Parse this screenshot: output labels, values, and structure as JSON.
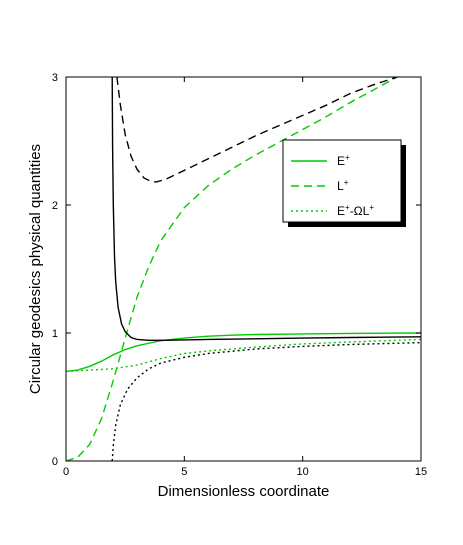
{
  "chart_data": {
    "type": "line",
    "title": "",
    "xlabel": "Dimensionless coordinate",
    "ylabel": "Circular geodesics physical quantities",
    "xlim": [
      0,
      15
    ],
    "ylim": [
      0,
      3
    ],
    "x_ticks": [
      0,
      5,
      10,
      15
    ],
    "y_ticks": [
      0,
      1,
      2,
      3
    ],
    "grid": false,
    "legend_position": "top-right",
    "legend": [
      {
        "base": "E",
        "sup": "+",
        "tail": "",
        "tail_sup": "",
        "style": "solid",
        "color": "#00cc00"
      },
      {
        "base": "L",
        "sup": "+",
        "tail": "",
        "tail_sup": "",
        "style": "dashed",
        "color": "#00cc00"
      },
      {
        "base": "E",
        "sup": "+",
        "tail": "-ΩL",
        "tail_sup": "+",
        "style": "dotted",
        "color": "#00cc00"
      }
    ],
    "series": [
      {
        "color": "#00cc00",
        "style": "solid",
        "x": [
          0,
          0.5,
          1,
          1.5,
          2,
          2.5,
          3,
          3.5,
          4,
          5,
          6,
          7,
          8,
          10,
          12,
          15
        ],
        "y": [
          0.7,
          0.71,
          0.74,
          0.78,
          0.83,
          0.87,
          0.9,
          0.92,
          0.94,
          0.96,
          0.975,
          0.983,
          0.988,
          0.993,
          0.997,
          1.0
        ]
      },
      {
        "color": "#00cc00",
        "style": "dashed",
        "x": [
          0,
          0.5,
          1,
          1.5,
          2,
          2.5,
          3,
          3.5,
          4,
          5,
          6,
          7,
          8,
          9,
          10,
          11,
          12,
          13,
          14
        ],
        "y": [
          0.0,
          0.03,
          0.13,
          0.33,
          0.63,
          0.96,
          1.28,
          1.52,
          1.72,
          1.98,
          2.15,
          2.28,
          2.39,
          2.49,
          2.59,
          2.69,
          2.8,
          2.9,
          3.0
        ]
      },
      {
        "color": "#00cc00",
        "style": "dotted",
        "x": [
          0,
          1,
          2,
          3,
          4,
          5,
          6,
          8,
          10,
          12,
          15
        ],
        "y": [
          0.7,
          0.71,
          0.72,
          0.75,
          0.8,
          0.84,
          0.86,
          0.89,
          0.915,
          0.93,
          0.95
        ]
      },
      {
        "color": "#000000",
        "style": "solid",
        "x": [
          1.95,
          1.97,
          2.0,
          2.05,
          2.1,
          2.2,
          2.35,
          2.5,
          2.75,
          3.0,
          3.5,
          4,
          5,
          6,
          8,
          10,
          12,
          15
        ],
        "y": [
          3.0,
          2.45,
          2.0,
          1.6,
          1.4,
          1.2,
          1.07,
          1.01,
          0.965,
          0.95,
          0.943,
          0.943,
          0.946,
          0.95,
          0.955,
          0.96,
          0.965,
          0.97
        ]
      },
      {
        "color": "#000000",
        "style": "dashed",
        "x": [
          2.15,
          2.3,
          2.5,
          2.75,
          3.0,
          3.3,
          3.6,
          3.8,
          4.2,
          5,
          6,
          7,
          8,
          9,
          10,
          11,
          12,
          13,
          14
        ],
        "y": [
          3.0,
          2.78,
          2.55,
          2.38,
          2.28,
          2.21,
          2.185,
          2.18,
          2.2,
          2.27,
          2.36,
          2.45,
          2.54,
          2.62,
          2.7,
          2.78,
          2.87,
          2.94,
          3.0
        ]
      },
      {
        "color": "#000000",
        "style": "dotted",
        "x": [
          1.95,
          2.0,
          2.1,
          2.3,
          2.6,
          3.0,
          3.5,
          4,
          5,
          6,
          8,
          10,
          12,
          15
        ],
        "y": [
          0.0,
          0.12,
          0.28,
          0.44,
          0.56,
          0.65,
          0.72,
          0.765,
          0.81,
          0.84,
          0.875,
          0.895,
          0.91,
          0.925
        ]
      }
    ]
  }
}
